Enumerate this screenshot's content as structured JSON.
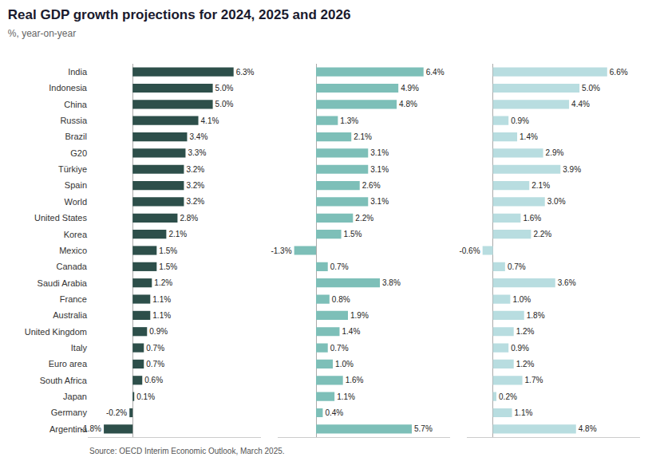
{
  "chart_data": [
    {
      "type": "bar",
      "title": "Real GDP growth projections for 2024, 2025 and 2026",
      "subtitle": "%, year-on-year",
      "annotations": [
        "Source: OECD Interim Economic Outlook, March 2025."
      ],
      "orientation": "horizontal",
      "categories": [
        "India",
        "Indonesia",
        "China",
        "Russia",
        "Brazil",
        "G20",
        "Türkiye",
        "Spain",
        "World",
        "United States",
        "Korea",
        "Mexico",
        "Canada",
        "Saudi Arabia",
        "France",
        "Australia",
        "United Kingdom",
        "Italy",
        "Euro area",
        "South Africa",
        "Japan",
        "Germany",
        "Argentina"
      ],
      "values": [
        6.3,
        5.0,
        5.0,
        4.1,
        3.4,
        3.3,
        3.2,
        3.2,
        3.2,
        2.8,
        2.1,
        1.5,
        1.5,
        1.2,
        1.1,
        1.1,
        0.9,
        0.7,
        0.7,
        0.6,
        0.1,
        -0.2,
        -1.8
      ],
      "value_labels": [
        "6.3%",
        "5.0%",
        "5.0%",
        "4.1%",
        "3.4%",
        "3.3%",
        "3.2%",
        "3.2%",
        "3.2%",
        "2.8%",
        "2.1%",
        "1.5%",
        "1.5%",
        "1.2%",
        "1.1%",
        "1.1%",
        "0.9%",
        "0.7%",
        "0.7%",
        "0.6%",
        "0.1%",
        "-0.2%",
        "-1.8%"
      ],
      "color": "#2d4f4a",
      "xlim": [
        -2.8,
        8.0
      ],
      "data_labels": true,
      "tick_labels": "y",
      "grid": false
    },
    {
      "type": "bar",
      "orientation": "horizontal",
      "categories": [
        "India",
        "Indonesia",
        "China",
        "Russia",
        "Brazil",
        "G20",
        "Türkiye",
        "Spain",
        "World",
        "United States",
        "Korea",
        "Mexico",
        "Canada",
        "Saudi Arabia",
        "France",
        "Australia",
        "United Kingdom",
        "Italy",
        "Euro area",
        "South Africa",
        "Japan",
        "Germany",
        "Argentina"
      ],
      "values": [
        6.4,
        4.9,
        4.8,
        1.3,
        2.1,
        3.1,
        3.1,
        2.6,
        3.1,
        2.2,
        1.5,
        -1.3,
        0.7,
        3.8,
        0.8,
        1.9,
        1.4,
        0.7,
        1.0,
        1.6,
        1.1,
        0.4,
        5.7
      ],
      "value_labels": [
        "6.4%",
        "4.9%",
        "4.8%",
        "1.3%",
        "2.1%",
        "3.1%",
        "3.1%",
        "2.6%",
        "3.1%",
        "2.2%",
        "1.5%",
        "-1.3%",
        "0.7%",
        "3.8%",
        "0.8%",
        "1.9%",
        "1.4%",
        "0.7%",
        "1.0%",
        "1.6%",
        "1.1%",
        "0.4%",
        "5.7%"
      ],
      "color": "#7dbfb8",
      "xlim": [
        -2.3,
        8.0
      ],
      "data_labels": true,
      "tick_labels": false,
      "grid": false
    },
    {
      "type": "bar",
      "orientation": "horizontal",
      "categories": [
        "India",
        "Indonesia",
        "China",
        "Russia",
        "Brazil",
        "G20",
        "Türkiye",
        "Spain",
        "World",
        "United States",
        "Korea",
        "Mexico",
        "Canada",
        "Saudi Arabia",
        "France",
        "Australia",
        "United Kingdom",
        "Italy",
        "Euro area",
        "South Africa",
        "Japan",
        "Germany",
        "Argentina"
      ],
      "values": [
        6.6,
        5.0,
        4.4,
        0.9,
        1.4,
        2.9,
        3.9,
        2.1,
        3.0,
        1.6,
        2.2,
        -0.6,
        0.7,
        3.6,
        1.0,
        1.8,
        1.2,
        0.9,
        1.2,
        1.7,
        0.2,
        1.1,
        4.8
      ],
      "value_labels": [
        "6.6%",
        "5.0%",
        "4.4%",
        "0.9%",
        "1.4%",
        "2.9%",
        "3.9%",
        "2.1%",
        "3.0%",
        "1.6%",
        "2.2%",
        "-0.6%",
        "0.7%",
        "3.6%",
        "1.0%",
        "1.8%",
        "1.2%",
        "0.9%",
        "1.2%",
        "1.7%",
        "0.2%",
        "1.1%",
        "4.8%"
      ],
      "color": "#b8dde0",
      "xlim": [
        -1.5,
        8.5
      ],
      "data_labels": true,
      "tick_labels": false,
      "grid": false
    }
  ]
}
